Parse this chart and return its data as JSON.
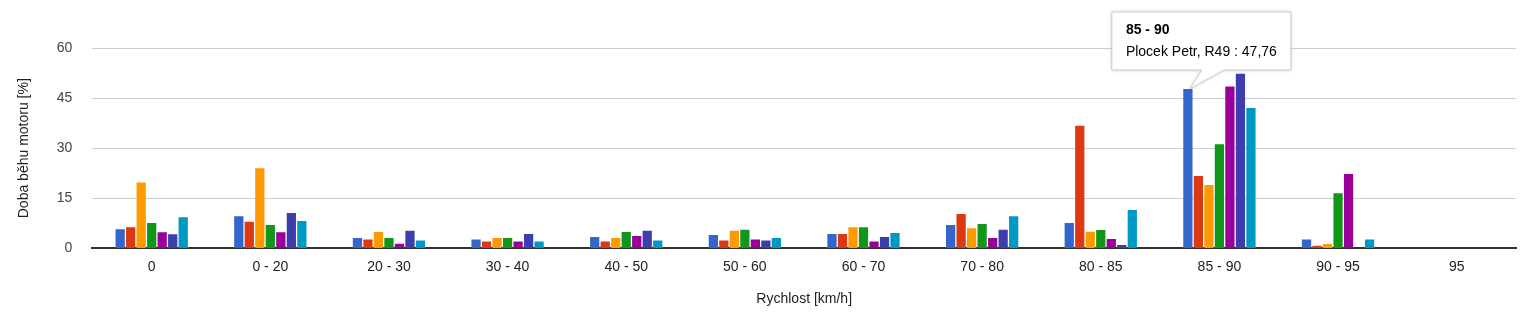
{
  "chart_data": {
    "type": "bar",
    "xlabel": "Rychlost [km/h]",
    "ylabel": "Doba běhu motoru [%]",
    "categories": [
      "0",
      "0 - 20",
      "20 - 30",
      "30 - 40",
      "40 - 50",
      "50 - 60",
      "60 - 70",
      "70 - 80",
      "80 - 85",
      "85 - 90",
      "90 - 95",
      "95"
    ],
    "series": [
      {
        "color": "#3366cc",
        "values": [
          5.7,
          9.6,
          3.1,
          2.7,
          3.4,
          4.0,
          4.3,
          7.0,
          7.6,
          47.76,
          2.7,
          0
        ]
      },
      {
        "color": "#dc3912",
        "values": [
          6.3,
          8.0,
          2.7,
          2.1,
          2.1,
          2.4,
          4.3,
          10.3,
          36.7,
          21.7,
          0.8,
          0
        ]
      },
      {
        "color": "#ff9900",
        "values": [
          19.7,
          24.0,
          4.9,
          3.1,
          3.1,
          5.3,
          6.3,
          6.0,
          5.0,
          19.0,
          1.3,
          0
        ]
      },
      {
        "color": "#109618",
        "values": [
          7.6,
          7.0,
          3.1,
          3.1,
          4.9,
          5.6,
          6.3,
          7.3,
          5.5,
          31.2,
          16.5,
          0
        ]
      },
      {
        "color": "#990099",
        "values": [
          4.8,
          4.8,
          1.4,
          2.1,
          3.7,
          2.7,
          2.1,
          3.1,
          2.8,
          48.5,
          22.3,
          0
        ]
      },
      {
        "color": "#3b3eac",
        "values": [
          4.2,
          10.6,
          5.3,
          4.3,
          5.3,
          2.4,
          3.4,
          5.6,
          1.0,
          52.3,
          0,
          0
        ]
      },
      {
        "color": "#0099c6",
        "values": [
          9.3,
          8.2,
          2.4,
          2.1,
          2.4,
          3.1,
          4.6,
          9.6,
          11.5,
          42.0,
          2.7,
          0
        ]
      }
    ],
    "ylim": [
      0,
      60
    ],
    "yticks": [
      0,
      15,
      30,
      45,
      60
    ],
    "grid": "y",
    "legend": false,
    "annotations": [
      "85 - 90",
      "Plocek Petr, R49 : 47,76"
    ]
  }
}
